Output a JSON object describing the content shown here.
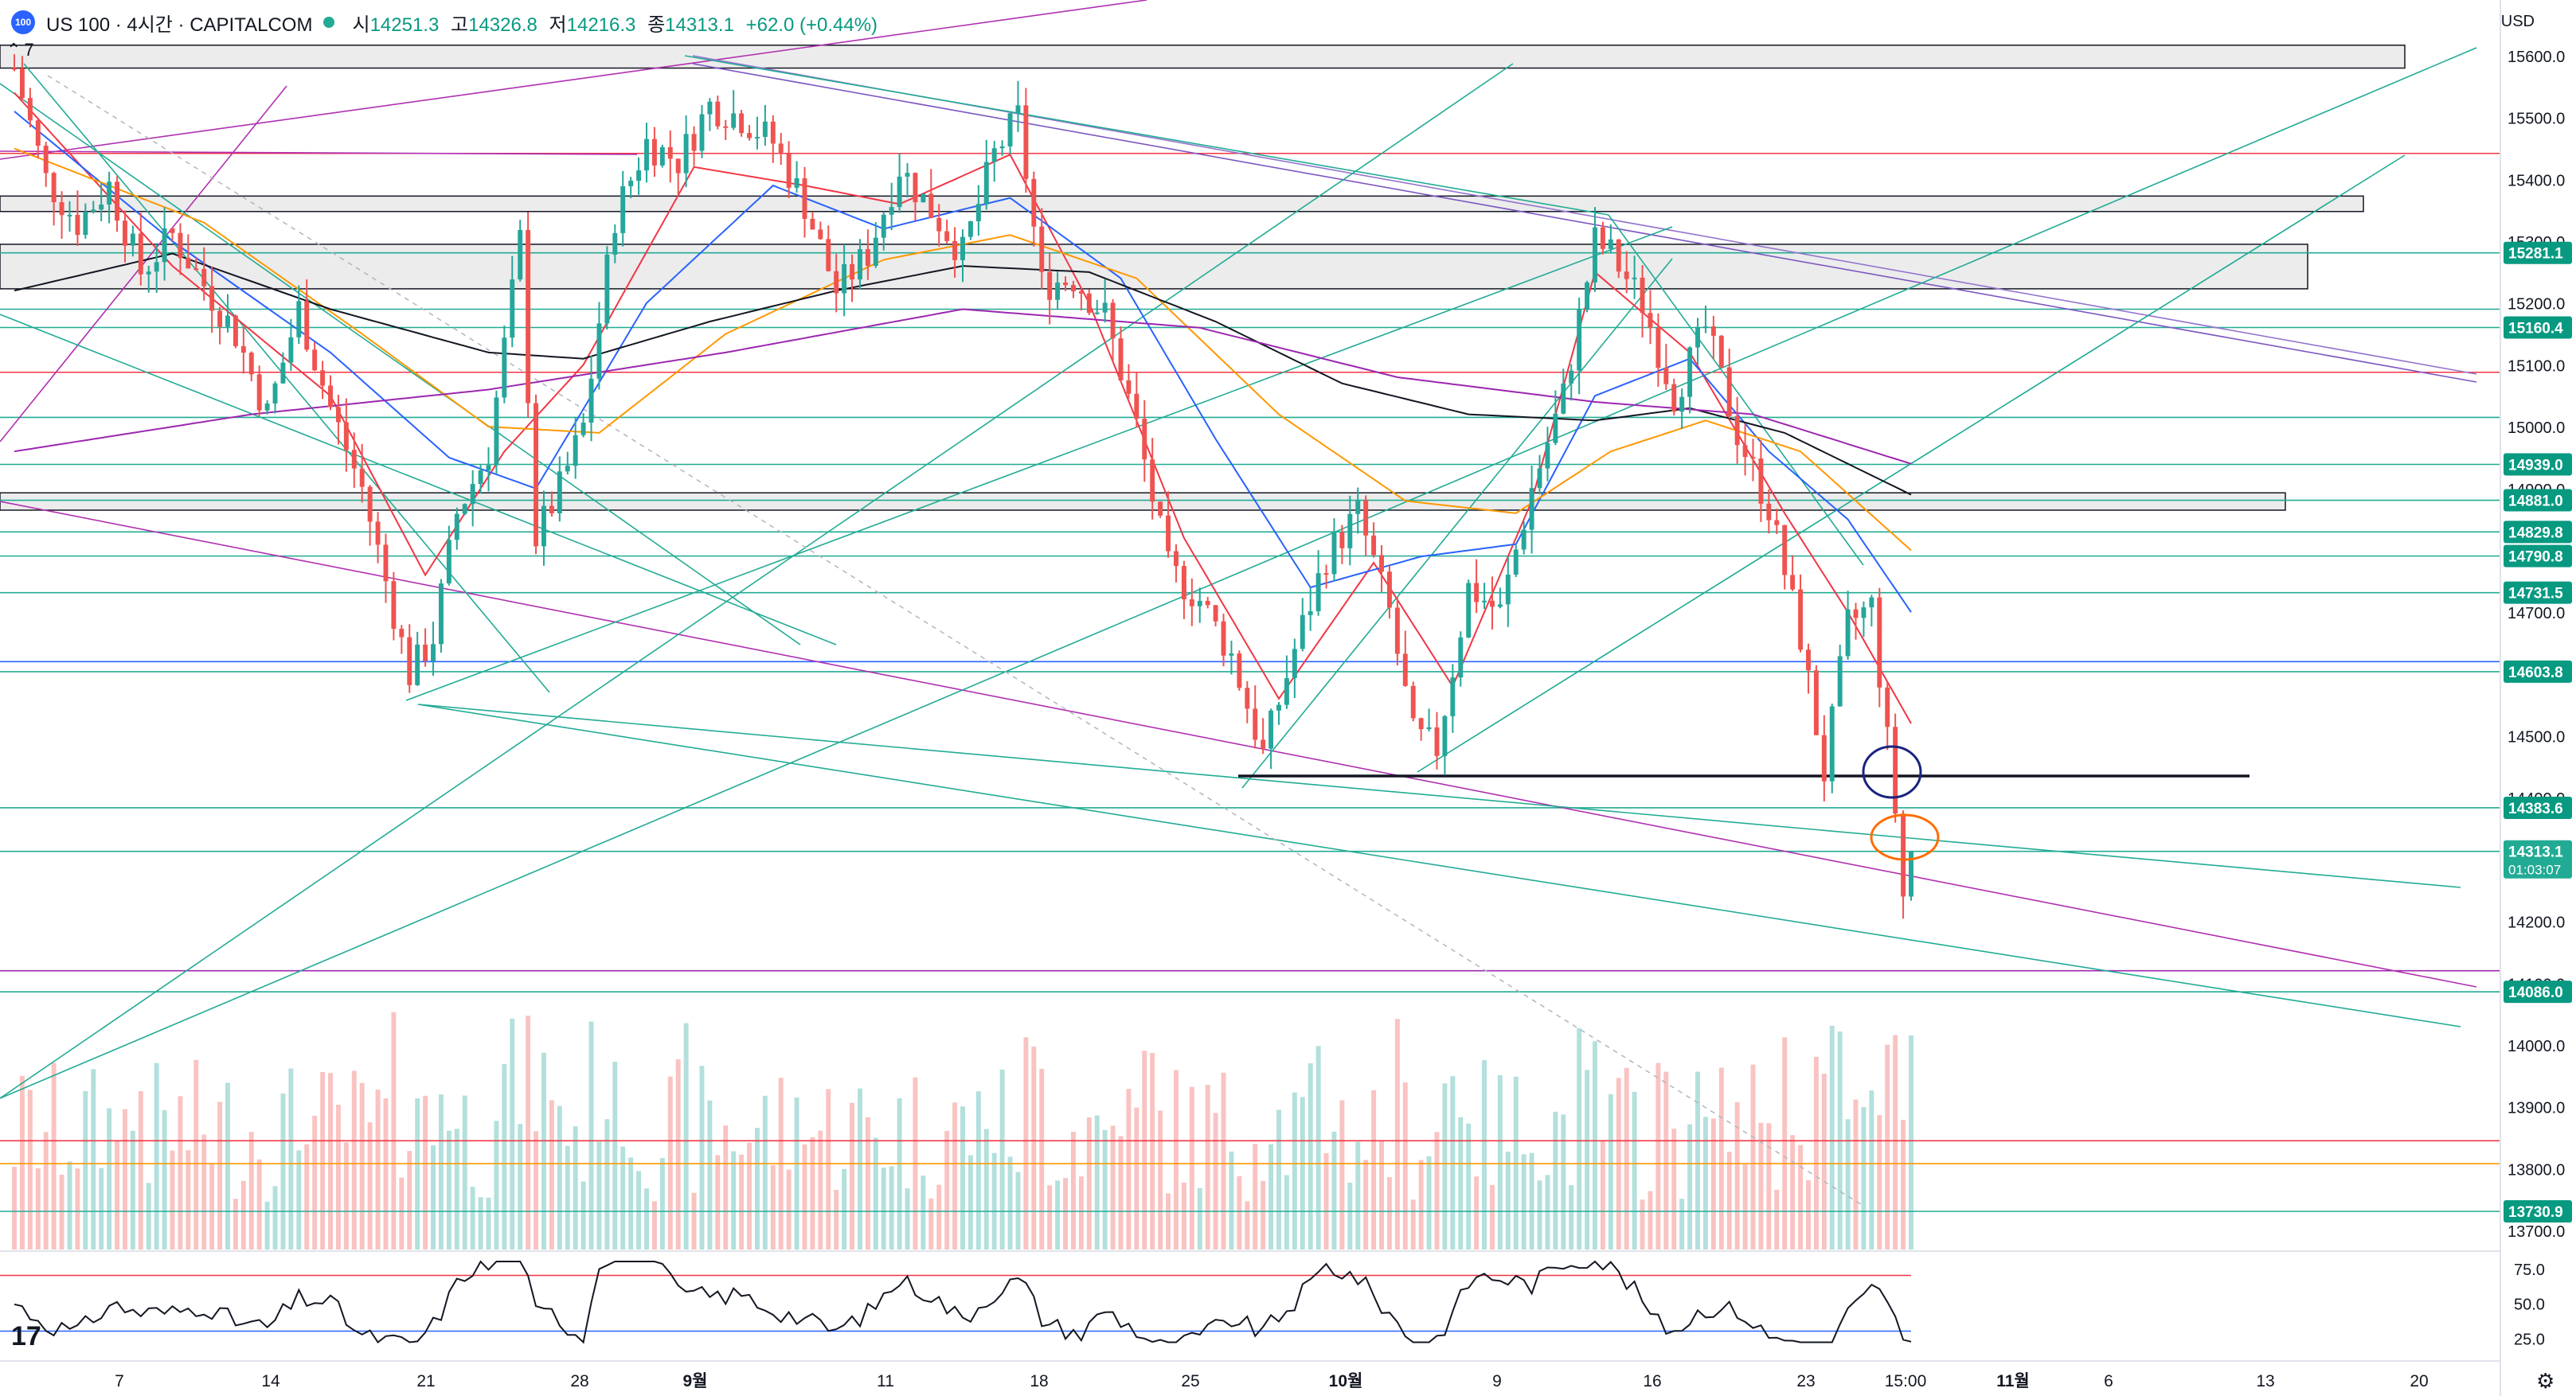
{
  "header": {
    "logo_text": "100",
    "symbol": "US 100 · 4시간 · CAPITALCOM",
    "open_label": "시",
    "open": "14251.3",
    "high_label": "고",
    "high": "14326.8",
    "low_label": "저",
    "low": "14216.3",
    "close_label": "종",
    "close": "14313.1",
    "change": "+62.0 (+0.44%)",
    "collapse_icon": "chevron-up-icon",
    "indicator_count": "7"
  },
  "currency": "USD",
  "countdown": "01:03:07",
  "colors": {
    "up": "#089981",
    "down": "#f23645",
    "up_candle": "#26a69a",
    "down_candle": "#ef5350",
    "ma_red": "#f23645",
    "ma_blue": "#2962ff",
    "ma_orange": "#ff9800",
    "ma_black": "#131722",
    "ma_purple": "#9c27b0",
    "teal_line": "#22ab94",
    "purple_line": "#b030b0",
    "zone_fill": "#e6e6e6",
    "label_bg": "#089981",
    "label_price_bg": "#22ab94"
  },
  "chart_data": {
    "type": "candlestick",
    "y_axis": {
      "min": 13700,
      "max": 15600,
      "ticks": [
        "15600.0",
        "15500.0",
        "15400.0",
        "15300.0",
        "15200.0",
        "15100.0",
        "15000.0",
        "14900.0",
        "14800.0",
        "14700.0",
        "14600.0",
        "14500.0",
        "14400.0",
        "14300.0",
        "14200.0",
        "14100.0",
        "14000.0",
        "13900.0",
        "13800.0",
        "13700.0"
      ]
    },
    "price_labels": [
      "15281.1",
      "15160.4",
      "14939.0",
      "14881.0",
      "14829.8",
      "14790.8",
      "14731.5",
      "14603.8",
      "14383.6",
      "14313.1",
      "14086.0",
      "13730.9"
    ],
    "x_ticks": [
      "7",
      "14",
      "21",
      "28",
      "9월",
      "11",
      "18",
      "25",
      "10월",
      "9",
      "16",
      "23",
      "15:00",
      "11월",
      "6",
      "13",
      "20"
    ],
    "candle_anchors": [
      {
        "i": 0,
        "v": 15580
      },
      {
        "i": 4,
        "v": 15400
      },
      {
        "i": 8,
        "v": 15330
      },
      {
        "i": 12,
        "v": 15390
      },
      {
        "i": 16,
        "v": 15250
      },
      {
        "i": 20,
        "v": 15310
      },
      {
        "i": 24,
        "v": 15230
      },
      {
        "i": 28,
        "v": 15150
      },
      {
        "i": 32,
        "v": 15020
      },
      {
        "i": 36,
        "v": 15190
      },
      {
        "i": 40,
        "v": 15030
      },
      {
        "i": 44,
        "v": 14900
      },
      {
        "i": 48,
        "v": 14700
      },
      {
        "i": 50,
        "v": 14600
      },
      {
        "i": 53,
        "v": 14660
      },
      {
        "i": 56,
        "v": 14860
      },
      {
        "i": 60,
        "v": 14960
      },
      {
        "i": 64,
        "v": 15300
      },
      {
        "i": 66,
        "v": 14820
      },
      {
        "i": 69,
        "v": 14900
      },
      {
        "i": 72,
        "v": 15000
      },
      {
        "i": 76,
        "v": 15340
      },
      {
        "i": 80,
        "v": 15460
      },
      {
        "i": 84,
        "v": 15430
      },
      {
        "i": 88,
        "v": 15520
      },
      {
        "i": 92,
        "v": 15500
      },
      {
        "i": 96,
        "v": 15460
      },
      {
        "i": 100,
        "v": 15360
      },
      {
        "i": 104,
        "v": 15220
      },
      {
        "i": 108,
        "v": 15280
      },
      {
        "i": 112,
        "v": 15420
      },
      {
        "i": 116,
        "v": 15350
      },
      {
        "i": 120,
        "v": 15280
      },
      {
        "i": 124,
        "v": 15440
      },
      {
        "i": 127,
        "v": 15500
      },
      {
        "i": 130,
        "v": 15230
      },
      {
        "i": 134,
        "v": 15240
      },
      {
        "i": 138,
        "v": 15180
      },
      {
        "i": 142,
        "v": 15000
      },
      {
        "i": 146,
        "v": 14770
      },
      {
        "i": 150,
        "v": 14720
      },
      {
        "i": 154,
        "v": 14630
      },
      {
        "i": 158,
        "v": 14470
      },
      {
        "i": 162,
        "v": 14640
      },
      {
        "i": 166,
        "v": 14790
      },
      {
        "i": 170,
        "v": 14860
      },
      {
        "i": 174,
        "v": 14700
      },
      {
        "i": 177,
        "v": 14500
      },
      {
        "i": 180,
        "v": 14480
      },
      {
        "i": 184,
        "v": 14740
      },
      {
        "i": 188,
        "v": 14700
      },
      {
        "i": 192,
        "v": 14900
      },
      {
        "i": 196,
        "v": 15050
      },
      {
        "i": 200,
        "v": 15300
      },
      {
        "i": 202,
        "v": 15280
      },
      {
        "i": 206,
        "v": 15200
      },
      {
        "i": 210,
        "v": 15050
      },
      {
        "i": 214,
        "v": 15160
      },
      {
        "i": 218,
        "v": 14990
      },
      {
        "i": 222,
        "v": 14870
      },
      {
        "i": 226,
        "v": 14660
      },
      {
        "i": 229,
        "v": 14440
      },
      {
        "i": 232,
        "v": 14680
      },
      {
        "i": 235,
        "v": 14710
      },
      {
        "i": 238,
        "v": 14380
      },
      {
        "i": 239,
        "v": 14240
      },
      {
        "i": 240,
        "v": 14313
      }
    ],
    "candle_count": 241,
    "moving_averages": [
      {
        "name": "MA red",
        "color": "#f23645",
        "anchors": [
          {
            "i": 0,
            "v": 15540
          },
          {
            "i": 20,
            "v": 15260
          },
          {
            "i": 40,
            "v": 15050
          },
          {
            "i": 52,
            "v": 14760
          },
          {
            "i": 62,
            "v": 14960
          },
          {
            "i": 72,
            "v": 15100
          },
          {
            "i": 86,
            "v": 15420
          },
          {
            "i": 100,
            "v": 15390
          },
          {
            "i": 112,
            "v": 15360
          },
          {
            "i": 126,
            "v": 15440
          },
          {
            "i": 136,
            "v": 15200
          },
          {
            "i": 148,
            "v": 14820
          },
          {
            "i": 160,
            "v": 14560
          },
          {
            "i": 172,
            "v": 14780
          },
          {
            "i": 182,
            "v": 14580
          },
          {
            "i": 192,
            "v": 14880
          },
          {
            "i": 200,
            "v": 15250
          },
          {
            "i": 212,
            "v": 15120
          },
          {
            "i": 224,
            "v": 14860
          },
          {
            "i": 232,
            "v": 14700
          },
          {
            "i": 240,
            "v": 14520
          }
        ]
      },
      {
        "name": "MA blue",
        "color": "#2962ff",
        "anchors": [
          {
            "i": 0,
            "v": 15510
          },
          {
            "i": 20,
            "v": 15300
          },
          {
            "i": 40,
            "v": 15120
          },
          {
            "i": 55,
            "v": 14950
          },
          {
            "i": 66,
            "v": 14900
          },
          {
            "i": 80,
            "v": 15200
          },
          {
            "i": 96,
            "v": 15390
          },
          {
            "i": 110,
            "v": 15320
          },
          {
            "i": 126,
            "v": 15370
          },
          {
            "i": 140,
            "v": 15240
          },
          {
            "i": 152,
            "v": 14980
          },
          {
            "i": 164,
            "v": 14740
          },
          {
            "i": 178,
            "v": 14790
          },
          {
            "i": 190,
            "v": 14810
          },
          {
            "i": 200,
            "v": 15050
          },
          {
            "i": 212,
            "v": 15110
          },
          {
            "i": 222,
            "v": 14960
          },
          {
            "i": 232,
            "v": 14850
          },
          {
            "i": 240,
            "v": 14700
          }
        ]
      },
      {
        "name": "MA orange",
        "color": "#ff9800",
        "anchors": [
          {
            "i": 0,
            "v": 15450
          },
          {
            "i": 24,
            "v": 15330
          },
          {
            "i": 44,
            "v": 15150
          },
          {
            "i": 60,
            "v": 15000
          },
          {
            "i": 74,
            "v": 14990
          },
          {
            "i": 90,
            "v": 15150
          },
          {
            "i": 110,
            "v": 15270
          },
          {
            "i": 126,
            "v": 15310
          },
          {
            "i": 142,
            "v": 15240
          },
          {
            "i": 160,
            "v": 15020
          },
          {
            "i": 176,
            "v": 14880
          },
          {
            "i": 190,
            "v": 14860
          },
          {
            "i": 202,
            "v": 14960
          },
          {
            "i": 214,
            "v": 15010
          },
          {
            "i": 226,
            "v": 14960
          },
          {
            "i": 240,
            "v": 14800
          }
        ]
      },
      {
        "name": "MA black",
        "color": "#131722",
        "anchors": [
          {
            "i": 0,
            "v": 15220
          },
          {
            "i": 20,
            "v": 15280
          },
          {
            "i": 40,
            "v": 15190
          },
          {
            "i": 60,
            "v": 15120
          },
          {
            "i": 72,
            "v": 15110
          },
          {
            "i": 88,
            "v": 15170
          },
          {
            "i": 104,
            "v": 15220
          },
          {
            "i": 120,
            "v": 15260
          },
          {
            "i": 136,
            "v": 15250
          },
          {
            "i": 152,
            "v": 15170
          },
          {
            "i": 168,
            "v": 15070
          },
          {
            "i": 184,
            "v": 15020
          },
          {
            "i": 200,
            "v": 15010
          },
          {
            "i": 212,
            "v": 15030
          },
          {
            "i": 224,
            "v": 14990
          },
          {
            "i": 240,
            "v": 14890
          }
        ]
      },
      {
        "name": "MA purple",
        "color": "#9c27b0",
        "anchors": [
          {
            "i": 0,
            "v": 14960
          },
          {
            "i": 30,
            "v": 15020
          },
          {
            "i": 60,
            "v": 15060
          },
          {
            "i": 90,
            "v": 15120
          },
          {
            "i": 120,
            "v": 15190
          },
          {
            "i": 150,
            "v": 15160
          },
          {
            "i": 175,
            "v": 15080
          },
          {
            "i": 200,
            "v": 15040
          },
          {
            "i": 220,
            "v": 15020
          },
          {
            "i": 240,
            "v": 14940
          }
        ]
      }
    ],
    "horizontal_lines": [
      {
        "v": 15442,
        "color": "#f23645"
      },
      {
        "v": 15281.1,
        "color": "#22ab94"
      },
      {
        "v": 15190,
        "color": "#22ab94"
      },
      {
        "v": 15160.4,
        "color": "#22ab94"
      },
      {
        "v": 15088,
        "color": "#f23645"
      },
      {
        "v": 15015,
        "color": "#22ab94"
      },
      {
        "v": 14939.0,
        "color": "#22ab94"
      },
      {
        "v": 14881.0,
        "color": "#22ab94"
      },
      {
        "v": 14829.8,
        "color": "#22ab94"
      },
      {
        "v": 14790.8,
        "color": "#22ab94"
      },
      {
        "v": 14731.5,
        "color": "#22ab94"
      },
      {
        "v": 14620,
        "color": "#2962ff"
      },
      {
        "v": 14603.8,
        "color": "#22ab94"
      },
      {
        "v": 14383.6,
        "color": "#22ab94"
      },
      {
        "v": 14313.1,
        "color": "#22ab94"
      },
      {
        "v": 14120,
        "color": "#9c27b0"
      },
      {
        "v": 14086.0,
        "color": "#22ab94"
      },
      {
        "v": 13845,
        "color": "#f23645"
      },
      {
        "v": 13808,
        "color": "#ff9800"
      },
      {
        "v": 13730.9,
        "color": "#22ab94"
      }
    ],
    "zones": [
      {
        "v1": 15580,
        "v2": 15617
      },
      {
        "v1": 15348,
        "v2": 15373
      },
      {
        "v1": 15223,
        "v2": 15295
      },
      {
        "v1": 14865,
        "v2": 14893
      }
    ],
    "black_level": 14440,
    "rsi": {
      "ticks": [
        "75.0",
        "50.0",
        "25.0"
      ],
      "upper": 70,
      "lower": 30
    },
    "volume_note": "volume bars behind price",
    "annotations": [
      "blue ellipse",
      "orange ellipse"
    ]
  }
}
